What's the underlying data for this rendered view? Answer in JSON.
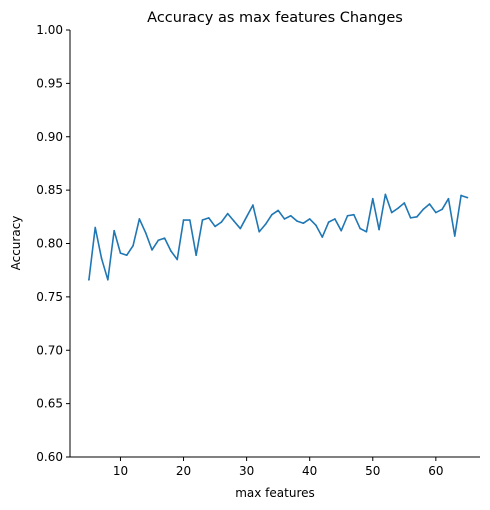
{
  "chart_data": {
    "type": "line",
    "title": "Accuracy as max features Changes",
    "xlabel": "max features",
    "ylabel": "Accuracy",
    "xlim": [
      2,
      67
    ],
    "ylim": [
      0.6,
      1.0
    ],
    "xticks": [
      10,
      20,
      30,
      40,
      50,
      60
    ],
    "yticks": [
      0.6,
      0.65,
      0.7,
      0.75,
      0.8,
      0.85,
      0.9,
      0.95,
      1.0
    ],
    "xtick_labels": [
      "10",
      "20",
      "30",
      "40",
      "50",
      "60"
    ],
    "ytick_labels": [
      "0.60",
      "0.65",
      "0.70",
      "0.75",
      "0.80",
      "0.85",
      "0.90",
      "0.95",
      "1.00"
    ],
    "grid": false,
    "line_color": "#1f77b4",
    "x": [
      5,
      6,
      7,
      8,
      9,
      10,
      11,
      12,
      13,
      14,
      15,
      16,
      17,
      18,
      19,
      20,
      21,
      22,
      23,
      24,
      25,
      26,
      27,
      28,
      29,
      30,
      31,
      32,
      33,
      34,
      35,
      36,
      37,
      38,
      39,
      40,
      41,
      42,
      43,
      44,
      45,
      46,
      47,
      48,
      49,
      50,
      51,
      52,
      53,
      54,
      55,
      56,
      57,
      58,
      59,
      60,
      61,
      62,
      63,
      64,
      65
    ],
    "y": [
      0.766,
      0.815,
      0.786,
      0.766,
      0.812,
      0.791,
      0.789,
      0.798,
      0.823,
      0.81,
      0.794,
      0.803,
      0.805,
      0.793,
      0.785,
      0.822,
      0.822,
      0.789,
      0.822,
      0.824,
      0.816,
      0.82,
      0.828,
      0.821,
      0.814,
      0.825,
      0.836,
      0.811,
      0.818,
      0.827,
      0.831,
      0.823,
      0.826,
      0.821,
      0.819,
      0.823,
      0.817,
      0.806,
      0.82,
      0.823,
      0.812,
      0.826,
      0.827,
      0.814,
      0.811,
      0.842,
      0.813,
      0.846,
      0.829,
      0.833,
      0.838,
      0.824,
      0.825,
      0.832,
      0.837,
      0.829,
      0.832,
      0.842,
      0.807,
      0.845,
      0.843
    ]
  }
}
